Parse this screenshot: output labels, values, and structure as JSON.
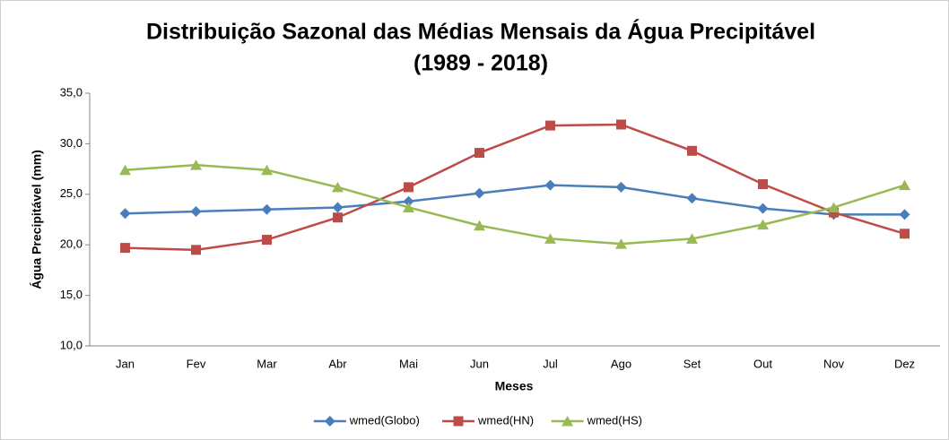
{
  "chart_data": {
    "type": "line",
    "title": [
      "Distribuição Sazonal das Médias Mensais da Água Precipitável",
      "(1989 - 2018)"
    ],
    "xlabel": "Meses",
    "ylabel": "Água Precipitável (mm)",
    "categories": [
      "Jan",
      "Fev",
      "Mar",
      "Abr",
      "Mai",
      "Jun",
      "Jul",
      "Ago",
      "Set",
      "Out",
      "Nov",
      "Dez"
    ],
    "series": [
      {
        "name": "wmed(Globo)",
        "color": "#4a7ebb",
        "marker": "diamond",
        "values": [
          23.1,
          23.3,
          23.5,
          23.7,
          24.3,
          25.1,
          25.9,
          25.7,
          24.6,
          23.6,
          23.0,
          23.0
        ]
      },
      {
        "name": "wmed(HN)",
        "color": "#be4b48",
        "marker": "square",
        "values": [
          19.7,
          19.5,
          20.5,
          22.7,
          25.7,
          29.1,
          31.8,
          31.9,
          29.3,
          26.0,
          23.2,
          21.1
        ]
      },
      {
        "name": "wmed(HS)",
        "color": "#98b954",
        "marker": "triangle",
        "values": [
          27.4,
          27.9,
          27.4,
          25.7,
          23.7,
          21.9,
          20.6,
          20.1,
          20.6,
          22.0,
          23.7,
          25.9
        ]
      }
    ],
    "ylim": [
      10,
      35
    ],
    "yticks": [
      {
        "value": 10,
        "label": "10,0"
      },
      {
        "value": 15,
        "label": "15,0"
      },
      {
        "value": 20,
        "label": "20,0"
      },
      {
        "value": 25,
        "label": "25,0"
      },
      {
        "value": 30,
        "label": "30,0"
      },
      {
        "value": 35,
        "label": "35,0"
      }
    ],
    "grid": false,
    "legend": "bottom"
  }
}
